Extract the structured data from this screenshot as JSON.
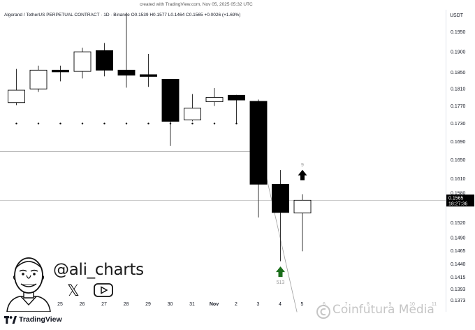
{
  "header": {
    "created_with": "created with TradingView.com, Nov 05, 2025 05:32 UTC",
    "symbol": "Algorand / TetherUS PERPETUAL CONTRACT · 1D · Binance",
    "ohlc_o": "O0.1539",
    "ohlc_h": "H0.1577",
    "ohlc_l": "L0.1464",
    "ohlc_c": "C0.1565",
    "change": "+0.0026 (+1.69%)",
    "currency": "USDT"
  },
  "price_badge": {
    "price": "0.1565",
    "countdown": "18:27:36"
  },
  "chart_data": {
    "type": "candlestick",
    "price_scale": "log",
    "ylim": [
      0.1355,
      0.2
    ],
    "y_ticks": [
      "0.1950",
      "0.1900",
      "0.1850",
      "0.1810",
      "0.1770",
      "0.1730",
      "0.1690",
      "0.1650",
      "0.1610",
      "0.1580",
      "0.1520",
      "0.1490",
      "0.1465",
      "0.1440",
      "0.1415",
      "0.1393",
      "0.1373"
    ],
    "x_ticks": [
      "25",
      "26",
      "27",
      "28",
      "29",
      "30",
      "31",
      "Nov",
      "2",
      "3",
      "4",
      "5",
      "6",
      "7",
      "8",
      "9",
      "10",
      "11"
    ],
    "x_ticks_faded_from": 12,
    "candles": [
      {
        "o": 0.1778,
        "h": 0.1858,
        "l": 0.1772,
        "c": 0.1807
      },
      {
        "o": 0.181,
        "h": 0.1866,
        "l": 0.1803,
        "c": 0.1855
      },
      {
        "o": 0.1855,
        "h": 0.1866,
        "l": 0.1828,
        "c": 0.1851
      },
      {
        "o": 0.1852,
        "h": 0.191,
        "l": 0.1835,
        "c": 0.19
      },
      {
        "o": 0.1903,
        "h": 0.1922,
        "l": 0.184,
        "c": 0.1855
      },
      {
        "o": 0.1855,
        "h": 0.2,
        "l": 0.1813,
        "c": 0.1843
      },
      {
        "o": 0.1844,
        "h": 0.1895,
        "l": 0.1815,
        "c": 0.184
      },
      {
        "o": 0.1833,
        "h": 0.1833,
        "l": 0.168,
        "c": 0.1735
      },
      {
        "o": 0.1738,
        "h": 0.1798,
        "l": 0.1735,
        "c": 0.1765
      },
      {
        "o": 0.178,
        "h": 0.1812,
        "l": 0.177,
        "c": 0.179
      },
      {
        "o": 0.1795,
        "h": 0.1796,
        "l": 0.173,
        "c": 0.1784
      },
      {
        "o": 0.1781,
        "h": 0.1785,
        "l": 0.153,
        "c": 0.1598
      },
      {
        "o": 0.1598,
        "h": 0.1628,
        "l": 0.1445,
        "c": 0.154
      },
      {
        "o": 0.1539,
        "h": 0.1577,
        "l": 0.1464,
        "c": 0.1565
      }
    ],
    "sell_setup_dots_price": 0.173,
    "horizontal_level": 0.1668,
    "last_price_line": 0.1565,
    "support_line": [
      {
        "index": 11.1,
        "price": 0.1668
      },
      {
        "index": 12.75,
        "price": 0.1352
      }
    ],
    "signals": [
      {
        "type": "buy",
        "color": "#1b6e1b",
        "index": 12,
        "price": 0.1426,
        "label": "513"
      },
      {
        "type": "up",
        "color": "#000000",
        "index": 13,
        "price": 0.1618,
        "label": "9"
      }
    ]
  },
  "branding": {
    "handle": "@ali_charts",
    "x_icon": "x-logo-icon",
    "youtube_icon": "youtube-icon",
    "tradingview": "TradingView",
    "watermark": "Coinfutura Media"
  }
}
